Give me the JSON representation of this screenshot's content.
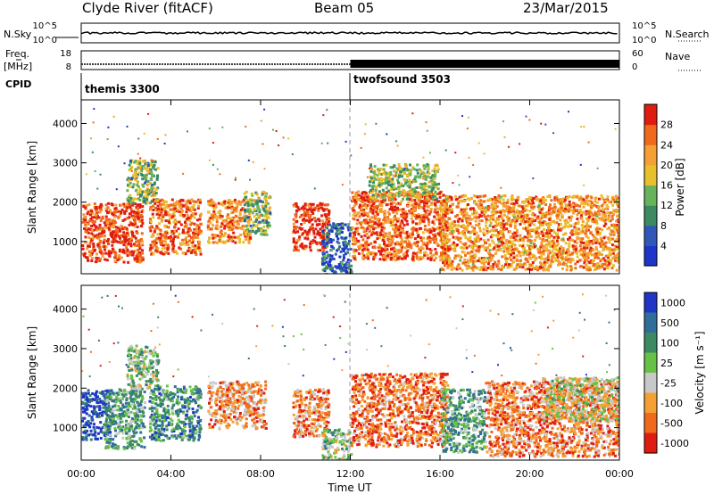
{
  "header": {
    "station": "Clyde River (fitACF)",
    "beam": "Beam 05",
    "date": "23/Mar/2015"
  },
  "top_panels": {
    "nsky_label": "N.Sky",
    "nsky_ticks": [
      "10^5",
      "10^0"
    ],
    "nsearch_label": "N.Search",
    "nsearch_ticks": [
      "10^5",
      "10^0"
    ],
    "freq_label_1": "Freq.",
    "freq_label_2": "[MHz]",
    "freq_ticks": [
      "18",
      "8"
    ],
    "nave_label": "Nave",
    "nave_ticks": [
      "60",
      "0"
    ],
    "cpid_label": "CPID",
    "cpid_segments": [
      {
        "name": "themis 3300",
        "start_hour": 0,
        "end_hour": 12
      },
      {
        "name": "twofsound 3503",
        "start_hour": 12,
        "end_hour": 24
      }
    ]
  },
  "chart_data": [
    {
      "type": "heatmap",
      "name": "power",
      "ylabel": "Slant Range [km]",
      "xlabel": "",
      "xlim": [
        0,
        24
      ],
      "ylim": [
        180,
        4600
      ],
      "yticks": [
        "1000",
        "2000",
        "3000",
        "4000"
      ],
      "colorbar": {
        "label": "Power [dB]",
        "ticks": [
          "4",
          "8",
          "12",
          "16",
          "20",
          "24",
          "28"
        ],
        "range": [
          0,
          30
        ],
        "colors": [
          "#1d35c8",
          "#2f58b8",
          "#3b8a62",
          "#66b35c",
          "#e7c02c",
          "#f5a032",
          "#f06a1d",
          "#e01c10"
        ]
      },
      "regions": [
        {
          "t0": 0.0,
          "t1": 2.7,
          "r0": 500,
          "r1": 2000,
          "level": 0.88
        },
        {
          "t0": 2.0,
          "t1": 3.4,
          "r0": 2000,
          "r1": 3100,
          "level": 0.45
        },
        {
          "t0": 3.0,
          "t1": 5.3,
          "r0": 700,
          "r1": 2100,
          "level": 0.8
        },
        {
          "t0": 5.6,
          "t1": 7.5,
          "r0": 1000,
          "r1": 2100,
          "level": 0.75
        },
        {
          "t0": 7.2,
          "t1": 8.4,
          "r0": 1200,
          "r1": 2300,
          "level": 0.45
        },
        {
          "t0": 9.4,
          "t1": 11.0,
          "r0": 800,
          "r1": 2000,
          "level": 0.92
        },
        {
          "t0": 10.7,
          "t1": 12.0,
          "r0": 180,
          "r1": 1500,
          "level": 0.2
        },
        {
          "t0": 12.0,
          "t1": 16.3,
          "r0": 550,
          "r1": 2300,
          "level": 0.82
        },
        {
          "t0": 12.8,
          "t1": 15.9,
          "r0": 2100,
          "r1": 3000,
          "level": 0.5
        },
        {
          "t0": 16.0,
          "t1": 24.0,
          "r0": 300,
          "r1": 2200,
          "level": 0.72
        }
      ]
    },
    {
      "type": "heatmap",
      "name": "velocity",
      "ylabel": "Slant Range [km]",
      "xlabel": "Time UT",
      "xlim": [
        0,
        24
      ],
      "ylim": [
        180,
        4600
      ],
      "xticks": [
        "00:00",
        "04:00",
        "08:00",
        "12:00",
        "16:00",
        "20:00",
        "00:00"
      ],
      "yticks": [
        "1000",
        "2000",
        "3000",
        "4000"
      ],
      "colorbar": {
        "label": "Velocity [m s⁻¹]",
        "ticks": [
          "1000",
          "500",
          "100",
          "25",
          "-25",
          "-100",
          "-500",
          "-1000"
        ],
        "colors": [
          "#1f35c8",
          "#2f6e9a",
          "#3b8a62",
          "#66c246",
          "#c8c8c8",
          "#f5a032",
          "#f06a1d",
          "#e01c10"
        ]
      },
      "regions": [
        {
          "t0": 0.0,
          "t1": 1.3,
          "r0": 700,
          "r1": 2000,
          "level": 0.08
        },
        {
          "t0": 1.0,
          "t1": 2.8,
          "r0": 500,
          "r1": 2000,
          "level": 0.35
        },
        {
          "t0": 2.0,
          "t1": 3.4,
          "r0": 2000,
          "r1": 3100,
          "level": 0.45
        },
        {
          "t0": 3.0,
          "t1": 5.3,
          "r0": 700,
          "r1": 2100,
          "level": 0.3
        },
        {
          "t0": 5.6,
          "t1": 8.2,
          "r0": 1000,
          "r1": 2200,
          "level": 0.72
        },
        {
          "t0": 9.4,
          "t1": 11.0,
          "r0": 800,
          "r1": 2000,
          "level": 0.75
        },
        {
          "t0": 10.7,
          "t1": 12.0,
          "r0": 180,
          "r1": 1000,
          "level": 0.45
        },
        {
          "t0": 12.0,
          "t1": 16.3,
          "r0": 550,
          "r1": 2400,
          "level": 0.8
        },
        {
          "t0": 16.0,
          "t1": 18.0,
          "r0": 400,
          "r1": 2000,
          "level": 0.35
        },
        {
          "t0": 18.0,
          "t1": 24.0,
          "r0": 300,
          "r1": 2200,
          "level": 0.78
        },
        {
          "t0": 20.5,
          "t1": 24.0,
          "r0": 1200,
          "r1": 2300,
          "level": 0.55
        }
      ]
    }
  ]
}
